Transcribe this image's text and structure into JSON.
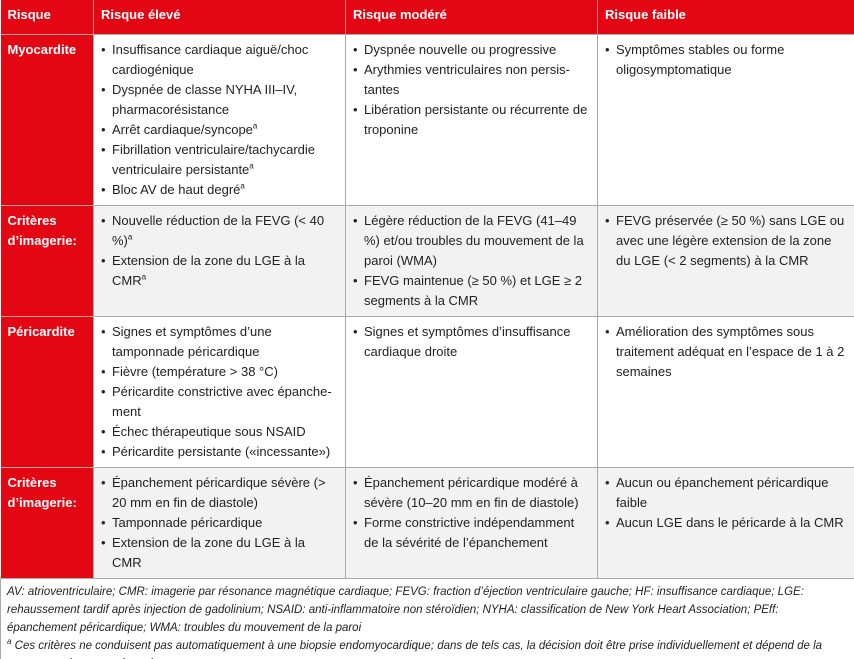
{
  "header": [
    "Risque",
    "Risque élevé",
    "Risque modéré",
    "Risque faible"
  ],
  "rows": [
    {
      "label": "Myocardite",
      "cells": [
        [
          {
            "t": "Insuffisance cardiaque aiguë/choc cardiogénique"
          },
          {
            "t": "Dyspnée de classe NYHA III–IV, pharmacorésistance"
          },
          {
            "t": "Arrêt cardiaque/syncope",
            "s": "a"
          },
          {
            "t": "Fibrillation ventriculaire/tachycardie ventriculaire persistante",
            "s": "a"
          },
          {
            "t": "Bloc AV de haut degré",
            "s": "a"
          }
        ],
        [
          {
            "t": "Dyspnée nouvelle ou progressive"
          },
          {
            "t": "Arythmies ventriculaires non persis­tantes"
          },
          {
            "t": "Libération persistante ou récurrente de troponine"
          }
        ],
        [
          {
            "t": "Symptômes stables ou forme oligosymp­tomatique"
          }
        ]
      ]
    },
    {
      "label": "Critères d’imagerie:",
      "cells": [
        [
          {
            "t": "Nouvelle réduction de la FEVG (< 40 %)",
            "s": "a"
          },
          {
            "t": "Extension de la zone du LGE à la CMR",
            "s": "a"
          }
        ],
        [
          {
            "t": "Légère réduction de la FEVG (41–49 %) et/ou troubles du mouvement de la paroi (WMA)"
          },
          {
            "t": "FEVG maintenue (≥ 50 %) et LGE ≥ 2 segments à la CMR"
          }
        ],
        [
          {
            "t": "FEVG préservée (≥ 50 %) sans LGE ou avec une légère extension de la zone du LGE (< 2 segments) à la CMR"
          }
        ]
      ]
    },
    {
      "label": "Péricardite",
      "cells": [
        [
          {
            "t": "Signes et symptômes d’une tamponnade péricardique"
          },
          {
            "t": "Fièvre (température > 38 °C)"
          },
          {
            "t": "Péricardite constrictive avec épanche­ment"
          },
          {
            "t": "Échec thérapeutique sous NSAID"
          },
          {
            "t": "Péricardite persistante («incessante»)"
          }
        ],
        [
          {
            "t": "Signes et symptômes d’insuffisance cardiaque droite"
          }
        ],
        [
          {
            "t": "Amélioration des symptômes sous traitement adéquat en l’espace de 1 à 2 semaines"
          }
        ]
      ]
    },
    {
      "label": "Critères d’imagerie:",
      "cells": [
        [
          {
            "t": "Épanchement péricardique sévère (> 20 mm en fin de diastole)"
          },
          {
            "t": "Tamponnade péricardique"
          },
          {
            "t": "Extension de la zone du LGE à la CMR"
          }
        ],
        [
          {
            "t": "Épanchement péricardique modéré à sévère (10–20 mm en fin de diastole)"
          },
          {
            "t": "Forme constrictive indépendamment de la sévérité de l’épanchement"
          }
        ],
        [
          {
            "t": "Aucun ou épanchement péricardique faible"
          },
          {
            "t": "Aucun LGE dans le péricarde à la CMR"
          }
        ]
      ]
    }
  ],
  "footnote": {
    "abbrev": "AV: atrioventriculaire; CMR: imagerie par résonance magnétique cardiaque; FEVG: fraction d’éjection ventriculaire gauche; HF: insuffisance cardiaque; LGE: rehaussement tardif après injection de gadolinium; NSAID: anti-inflammatoire non stéroïdien; NYHA: classification de New York Heart Association; PEff: épanchement péricardique; WMA: troubles du mouvement de la paroi",
    "mark": "a",
    "note": "Ces critères ne conduisent pas automatiquement à une biopsie endomyocardique; dans de tels cas, la décision doit être prise individuellement et dépend de la cause sous-jacente présumée."
  },
  "colors": {
    "accent": "#e30613",
    "alt_row": "#f2f2f2"
  }
}
